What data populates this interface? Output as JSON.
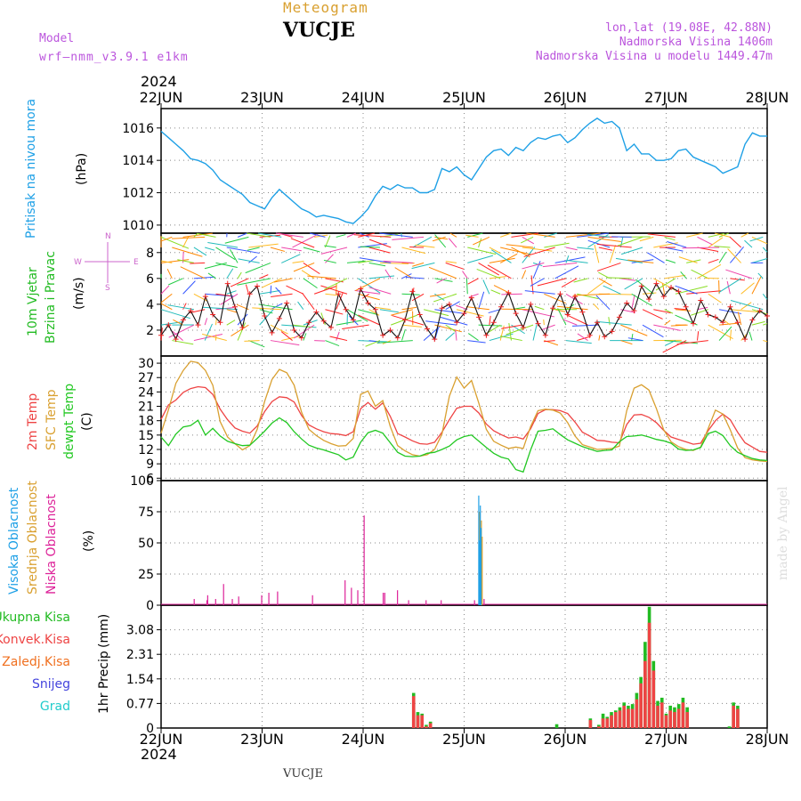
{
  "header": {
    "title": "Meteogram",
    "station": "VUCJE",
    "model_label": "Model",
    "model_name": "wrf—nmm_v3.9.1  e1km",
    "lonlat": "lon,lat (19.08E, 42.88N)",
    "elevation": "Nadmorska Visina 1406m",
    "model_elevation": "Nadmorska Visina u modelu 1449.47m",
    "year_top": "2024",
    "year_bottom": "2024",
    "footer_station": "VUCJE",
    "credit": "made by Angel"
  },
  "colors": {
    "pressure": "#1ea0e6",
    "wind_label": "#22bb22",
    "temp2m": "#ee4444",
    "sfc": "#d9a030",
    "dew": "#22c822",
    "high_cloud": "#1ea0e6",
    "mid_cloud": "#d9a030",
    "low_cloud": "#dd2299",
    "total_precip": "#22bb22",
    "conv_precip": "#ee4444",
    "frz_precip": "#f07020",
    "snow": "#4444dd",
    "hail": "#22cccc",
    "dir_legend": "#cc66cc",
    "grid": "#888888"
  },
  "wind_dir_legend": {
    "n": "N",
    "s": "S",
    "e": "E",
    "w": "W"
  },
  "chart_data": [
    {
      "type": "line",
      "name": "pressure",
      "ylabel": "Pritisak na nivou mora",
      "unit": "(hPa)",
      "x_labels": [
        "22JUN",
        "23JUN",
        "24JUN",
        "25JUN",
        "26JUN",
        "27JUN",
        "28JUN"
      ],
      "yticks": [
        1010,
        1012,
        1014,
        1016
      ],
      "ylim": [
        1009.5,
        1017.2
      ],
      "series": [
        {
          "values": [
            1015.8,
            1015.4,
            1015.0,
            1014.6,
            1014.1,
            1014.0,
            1013.8,
            1013.4,
            1012.8,
            1012.5,
            1012.2,
            1011.9,
            1011.4,
            1011.2,
            1011.0,
            1011.7,
            1012.2,
            1011.8,
            1011.4,
            1011.0,
            1010.8,
            1010.5,
            1010.6,
            1010.5,
            1010.4,
            1010.2,
            1010.1,
            1010.5,
            1011.0,
            1011.8,
            1012.4,
            1012.2,
            1012.5,
            1012.3,
            1012.3,
            1012.0,
            1012.0,
            1012.2,
            1013.5,
            1013.3,
            1013.6,
            1013.1,
            1012.8,
            1013.5,
            1014.2,
            1014.6,
            1014.7,
            1014.3,
            1014.8,
            1014.6,
            1015.1,
            1015.4,
            1015.3,
            1015.5,
            1015.6,
            1015.1,
            1015.4,
            1015.9,
            1016.3,
            1016.6,
            1016.3,
            1016.4,
            1016.0,
            1014.6,
            1015.0,
            1014.4,
            1014.4,
            1014.0,
            1014.0,
            1014.1,
            1014.6,
            1014.7,
            1014.2,
            1014.0,
            1013.8,
            1013.6,
            1013.2,
            1013.4,
            1013.6,
            1015.0,
            1015.7,
            1015.5,
            1015.5
          ]
        }
      ]
    },
    {
      "type": "line",
      "name": "wind",
      "ylabel": "10m Vjetar",
      "ylabel2": "Brzina i Pravac",
      "unit": "(m/s)",
      "yticks": [
        2,
        4,
        6,
        8
      ],
      "ylim": [
        0,
        9.5
      ],
      "series": [
        {
          "values": [
            1.6,
            2.4,
            1.3,
            2.8,
            3.5,
            2.4,
            4.6,
            3.2,
            2.6,
            5.6,
            3.8,
            2.2,
            4.8,
            5.4,
            3.1,
            1.8,
            2.9,
            4.1,
            2.0,
            1.4,
            2.6,
            3.4,
            2.7,
            2.2,
            4.8,
            3.6,
            2.8,
            5.2,
            4.1,
            3.6,
            1.6,
            2.0,
            1.4,
            2.8,
            5.0,
            3.2,
            2.1,
            1.3,
            3.7,
            4.0,
            2.6,
            3.3,
            4.5,
            3.0,
            1.6,
            2.6,
            3.8,
            4.9,
            3.3,
            2.2,
            4.0,
            2.5,
            1.6,
            3.7,
            4.8,
            3.2,
            4.6,
            3.4,
            1.6,
            2.6,
            1.5,
            1.9,
            3.0,
            4.1,
            3.5,
            5.4,
            4.4,
            5.6,
            4.6,
            5.3,
            5.0,
            3.8,
            2.5,
            4.3,
            3.2,
            3.0,
            2.6,
            3.8,
            2.6,
            1.3,
            2.8,
            3.5,
            3.1
          ]
        }
      ]
    },
    {
      "type": "line",
      "name": "temperature",
      "ylabels": [
        "2m Temp",
        "SFC Temp",
        "dewpt Temp"
      ],
      "unit": "(C)",
      "yticks": [
        6,
        9,
        12,
        15,
        18,
        21,
        24,
        27,
        30
      ],
      "ylim": [
        5.5,
        31.5
      ],
      "series": [
        {
          "name": "2m Temp",
          "values": [
            18.3,
            21.3,
            22.3,
            23.9,
            24.7,
            25.1,
            24.9,
            23.5,
            20.4,
            18.2,
            16.5,
            15.8,
            15.4,
            16.9,
            19.9,
            22.0,
            23.0,
            22.8,
            21.9,
            19.1,
            17.1,
            16.3,
            15.7,
            15.3,
            15.2,
            14.9,
            15.7,
            20.5,
            21.8,
            20.4,
            21.7,
            18.9,
            15.3,
            14.6,
            13.8,
            13.2,
            13.1,
            13.5,
            15.6,
            18.2,
            20.6,
            21.0,
            21.0,
            19.6,
            17.3,
            15.9,
            15.1,
            14.4,
            14.6,
            14.2,
            16.3,
            19.5,
            20.3,
            20.3,
            20.1,
            19.5,
            17.7,
            15.6,
            14.8,
            13.9,
            13.8,
            13.5,
            13.4,
            17.2,
            19.2,
            19.3,
            18.7,
            17.6,
            16.0,
            14.6,
            14.1,
            13.6,
            13.1,
            13.3,
            15.9,
            18.0,
            19.4,
            18.2,
            15.6,
            13.4,
            12.5,
            11.6,
            11.4
          ]
        },
        {
          "name": "SFC Temp",
          "values": [
            15.4,
            20.3,
            25.8,
            28.5,
            30.4,
            30.1,
            28.5,
            25.4,
            17.8,
            14.6,
            13.2,
            11.9,
            12.8,
            16.2,
            22.0,
            26.6,
            28.7,
            28.0,
            25.4,
            19.8,
            16.2,
            14.9,
            13.9,
            13.2,
            12.7,
            12.8,
            14.3,
            23.5,
            24.2,
            21.0,
            22.2,
            16.8,
            12.8,
            11.7,
            10.9,
            10.6,
            10.9,
            12.0,
            15.2,
            23.1,
            27.1,
            24.8,
            26.4,
            21.6,
            16.2,
            13.7,
            12.9,
            12.2,
            12.5,
            12.2,
            16.8,
            20.1,
            20.4,
            20.2,
            19.6,
            17.6,
            14.8,
            13.0,
            12.5,
            12.0,
            12.1,
            12.2,
            12.7,
            20.1,
            24.8,
            25.5,
            24.4,
            20.6,
            16.1,
            13.6,
            12.6,
            12.0,
            11.8,
            12.5,
            16.3,
            20.2,
            19.4,
            16.1,
            12.3,
            10.3,
            9.8,
            9.6,
            9.5
          ]
        },
        {
          "name": "dewpt Temp",
          "values": [
            14.6,
            12.8,
            15.2,
            16.7,
            17.0,
            18.1,
            15.0,
            16.4,
            14.8,
            13.7,
            13.2,
            12.8,
            12.9,
            14.3,
            15.8,
            17.5,
            18.6,
            17.6,
            15.7,
            14.2,
            12.9,
            12.3,
            11.9,
            11.4,
            10.9,
            9.8,
            10.4,
            13.5,
            15.5,
            16.0,
            15.4,
            13.4,
            11.4,
            10.6,
            10.5,
            10.6,
            11.2,
            11.4,
            12.0,
            12.7,
            14.0,
            14.7,
            15.0,
            13.7,
            12.4,
            11.2,
            10.4,
            10.0,
            7.8,
            7.3,
            11.9,
            15.8,
            16.0,
            16.3,
            15.1,
            14.0,
            13.3,
            12.6,
            12.1,
            11.6,
            11.8,
            11.9,
            13.6,
            14.7,
            14.8,
            15.0,
            14.6,
            14.1,
            13.8,
            13.3,
            12.1,
            11.8,
            11.9,
            12.4,
            15.3,
            15.8,
            14.9,
            12.8,
            11.4,
            10.7,
            10.1,
            9.8,
            9.7
          ]
        }
      ]
    },
    {
      "type": "bar",
      "name": "clouds",
      "ylabels": [
        "Visoka Oblacnost",
        "Srednja Oblacnost",
        "Niska Oblacnost"
      ],
      "unit": "(%)",
      "yticks": [
        0,
        25,
        50,
        75,
        100
      ],
      "ylim": [
        0,
        100
      ],
      "hours": [
        39,
        55,
        56,
        66,
        76,
        87,
        95,
        124,
        133,
        144,
        188,
        229,
        237,
        245,
        253,
        277,
        279,
        295,
        309,
        331,
        350,
        392,
        400,
        401,
        402,
        403,
        404,
        406,
        408,
        410,
        412,
        414,
        436,
        444,
        501,
        503,
        519,
        520,
        530,
        532,
        534,
        538,
        540,
        542,
        544,
        552,
        574,
        577,
        583,
        589,
        600,
        601,
        602,
        603,
        605,
        608,
        610,
        611,
        613,
        616,
        618,
        619,
        620,
        627,
        652,
        698,
        704,
        731,
        735,
        736,
        738,
        750,
        755,
        757,
        765
      ],
      "series": [
        {
          "name": "Visoka Oblacnost",
          "values": [
            0,
            0,
            0,
            0,
            0,
            0,
            0,
            0,
            0,
            0,
            0,
            0,
            0,
            0,
            0,
            0,
            0,
            0,
            0,
            0,
            0,
            0,
            88,
            52,
            80,
            62,
            0,
            0,
            0,
            0,
            0,
            0,
            0,
            0,
            0,
            0,
            0,
            0,
            0,
            0,
            0,
            0,
            0,
            0,
            0,
            0,
            0,
            0,
            0,
            0,
            0,
            0,
            0,
            0,
            0,
            0,
            0,
            0,
            0,
            0,
            0,
            0,
            0,
            0,
            0,
            0,
            0,
            0,
            0,
            0,
            0,
            0,
            0,
            0,
            0
          ]
        },
        {
          "name": "Srednja Oblacnost",
          "values": [
            0,
            0,
            0,
            0,
            0,
            0,
            0,
            0,
            0,
            0,
            0,
            0,
            0,
            0,
            0,
            0,
            0,
            0,
            0,
            0,
            0,
            0,
            75,
            50,
            68,
            55,
            0,
            0,
            0,
            0,
            0,
            0,
            0,
            0,
            0,
            0,
            0,
            0,
            0,
            0,
            0,
            0,
            0,
            0,
            0,
            0,
            0,
            0,
            0,
            0,
            0,
            0,
            0,
            0,
            0,
            0,
            0,
            0,
            0,
            0,
            0,
            0,
            0,
            0,
            0,
            0,
            0,
            0,
            0,
            0,
            0,
            0,
            0,
            0,
            0
          ]
        },
        {
          "name": "Niska Oblacnost",
          "values": [
            5,
            4,
            8,
            5,
            17,
            5,
            7,
            8,
            10,
            11,
            8,
            20,
            14,
            12,
            72,
            10,
            10,
            12,
            4,
            4,
            4,
            4,
            0,
            0,
            0,
            0,
            5,
            0,
            0,
            0,
            0,
            0,
            0,
            0,
            0,
            0,
            0,
            0,
            0,
            0,
            0,
            0,
            0,
            0,
            0,
            0,
            0,
            0,
            0,
            0,
            0,
            0,
            0,
            0,
            0,
            0,
            0,
            0,
            0,
            0,
            0,
            0,
            0,
            0,
            0,
            0,
            0,
            0,
            0,
            0,
            0,
            0,
            0,
            0,
            0
          ]
        }
      ]
    },
    {
      "type": "bar",
      "name": "precip",
      "legend": [
        "Ukupna Kisa",
        "Konvek.Kisa",
        "Zaledj.Kisa",
        "Snijeg",
        "Grad"
      ],
      "ylabel": "1hr Precip",
      "unit": "(mm)",
      "yticks": [
        0,
        0.77,
        1.54,
        2.31,
        3.08
      ],
      "ylim": [
        0,
        3.85
      ],
      "hours": [
        60,
        61,
        62,
        63,
        64,
        65,
        66,
        67,
        68,
        69,
        94,
        102,
        104,
        105,
        106,
        107,
        108,
        109,
        110,
        111,
        112,
        113,
        114,
        115,
        116,
        117,
        118,
        119,
        120,
        121,
        122,
        123,
        124,
        125,
        127,
        129,
        134,
        135,
        136,
        137,
        138,
        141
      ],
      "series": [
        {
          "name": "Ukupna Kisa",
          "values": [
            1.1,
            0.5,
            0.45,
            0.1,
            0.2,
            0,
            0,
            0,
            0,
            0,
            0.12,
            0.3,
            0.1,
            0.45,
            0.35,
            0.5,
            0.55,
            0.65,
            0.8,
            0.7,
            0.75,
            1.1,
            1.6,
            2.7,
            3.8,
            2.1,
            0.85,
            0.95,
            0.45,
            0.7,
            0.65,
            0.75,
            0.95,
            0.65,
            0,
            0,
            0,
            0.05,
            0.8,
            0.7,
            0,
            0
          ]
        },
        {
          "name": "Konvek.Kisa",
          "values": [
            1.0,
            0.4,
            0.4,
            0.05,
            0.15,
            0,
            0,
            0,
            0,
            0,
            0,
            0.25,
            0.05,
            0.3,
            0.3,
            0.4,
            0.5,
            0.55,
            0.7,
            0.6,
            0.6,
            0.9,
            1.4,
            2.1,
            3.3,
            1.8,
            0.7,
            0.8,
            0.4,
            0.55,
            0.5,
            0.6,
            0.8,
            0.5,
            0,
            0,
            0,
            0,
            0.7,
            0.6,
            0,
            0
          ]
        }
      ]
    }
  ]
}
